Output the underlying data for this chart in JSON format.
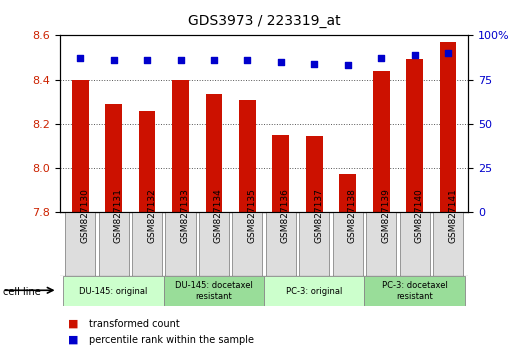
{
  "title": "GDS3973 / 223319_at",
  "samples": [
    "GSM827130",
    "GSM827131",
    "GSM827132",
    "GSM827133",
    "GSM827134",
    "GSM827135",
    "GSM827136",
    "GSM827137",
    "GSM827138",
    "GSM827139",
    "GSM827140",
    "GSM827141"
  ],
  "bar_values": [
    8.4,
    8.29,
    8.26,
    8.4,
    8.335,
    8.31,
    8.15,
    8.145,
    7.975,
    8.44,
    8.495,
    8.57
  ],
  "percentile_values": [
    87,
    86,
    86,
    86,
    86,
    86,
    85,
    84,
    83,
    87,
    89,
    90
  ],
  "y_min": 7.8,
  "y_max": 8.6,
  "bar_color": "#cc1100",
  "dot_color": "#0000cc",
  "grid_color": "#555555",
  "yticks_left": [
    7.8,
    8.0,
    8.2,
    8.4,
    8.6
  ],
  "yticks_right": [
    0,
    25,
    50,
    75,
    100
  ],
  "cell_line_groups": [
    {
      "label": "DU-145: original",
      "start": 0,
      "end": 3,
      "color": "#ccffcc"
    },
    {
      "label": "DU-145: docetaxel\nresistant",
      "start": 3,
      "end": 6,
      "color": "#99dd99"
    },
    {
      "label": "PC-3: original",
      "start": 6,
      "end": 9,
      "color": "#ccffcc"
    },
    {
      "label": "PC-3: docetaxel\nresistant",
      "start": 9,
      "end": 12,
      "color": "#99dd99"
    }
  ],
  "legend_bar_label": "transformed count",
  "legend_dot_label": "percentile rank within the sample",
  "cell_line_label": "cell line",
  "bar_width": 0.5,
  "tick_label_color_left": "#cc2200",
  "tick_label_color_right": "#0000cc",
  "title_fontsize": 10,
  "xlabel_fontsize": 6.5
}
